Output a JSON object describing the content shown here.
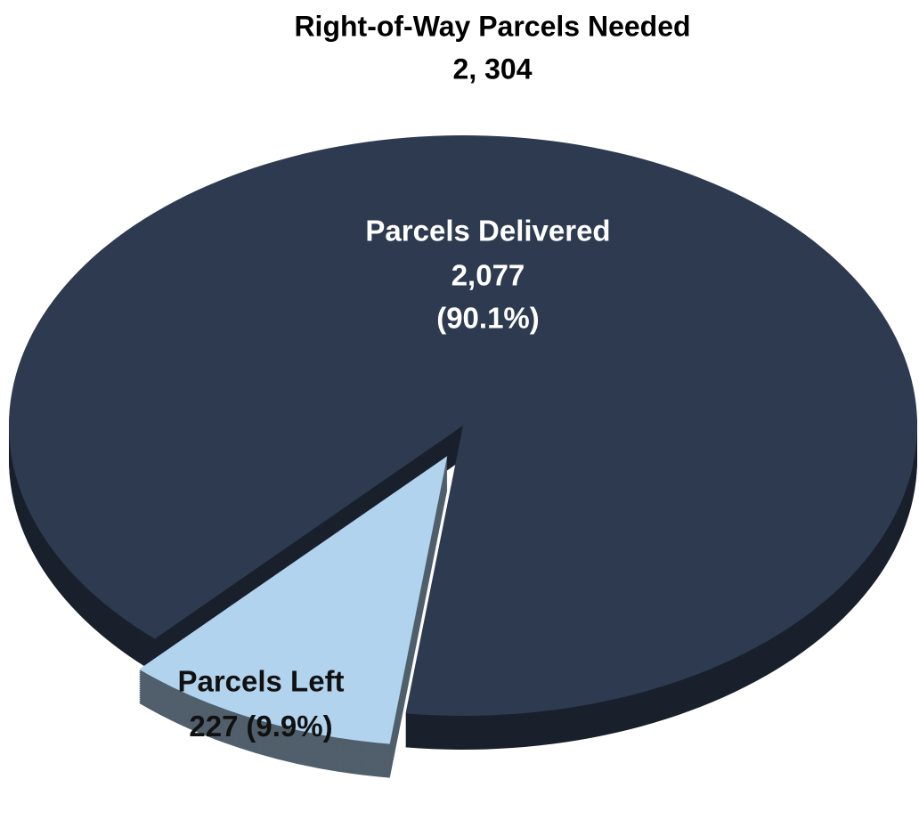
{
  "chart_data": {
    "type": "pie",
    "title": "Right-of-Way Parcels Needed",
    "subtitle": "2, 304",
    "categories": [
      "Parcels Delivered",
      "Parcels Left"
    ],
    "values": [
      2077,
      227
    ],
    "value_labels": [
      "2,077",
      "227"
    ],
    "percents": [
      90.1,
      9.9
    ],
    "percent_labels": [
      "(90.1%)",
      "(9.9%)"
    ],
    "colors": [
      "#2d3a50",
      "#b2d3ee"
    ],
    "exploded": [
      false,
      true
    ]
  }
}
